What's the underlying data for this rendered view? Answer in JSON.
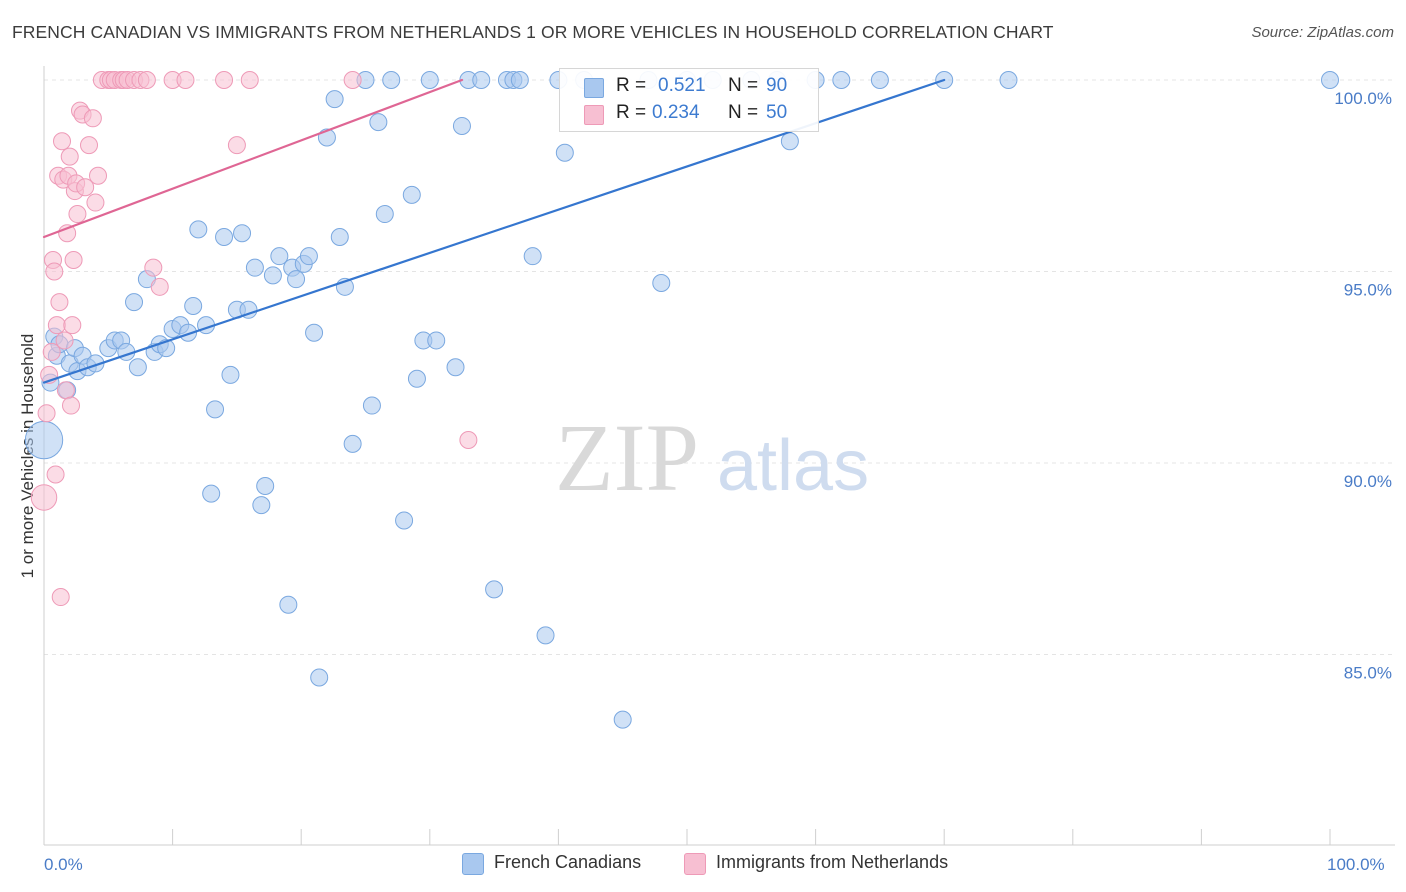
{
  "header": {
    "title": "FRENCH CANADIAN VS IMMIGRANTS FROM NETHERLANDS 1 OR MORE VEHICLES IN HOUSEHOLD CORRELATION CHART",
    "source": "Source: ZipAtlas.com"
  },
  "watermark": {
    "zip": "ZIP",
    "atlas": "atlas"
  },
  "chart_data": {
    "type": "scatter",
    "ylabel": "1 or more Vehicles in Household",
    "xlim": [
      0,
      100
    ],
    "ylim": [
      80.3,
      100.9
    ],
    "x_tick_labels": [
      "0.0%",
      "100.0%"
    ],
    "y_ticks": [
      {
        "value": 100,
        "label": "100.0%"
      },
      {
        "value": 95,
        "label": "95.0%"
      },
      {
        "value": 90,
        "label": "90.0%"
      },
      {
        "value": 85,
        "label": "85.0%"
      }
    ],
    "grid": true,
    "legend_placement": "top-center",
    "stats": [
      {
        "r_label": "R =",
        "r": "0.521",
        "n_label": "N =",
        "n": "90"
      },
      {
        "r_label": "R =",
        "r": "0.234",
        "n_label": "N =",
        "n": "50"
      }
    ],
    "series": [
      {
        "name": "French Canadians",
        "color": "#a9c8ef",
        "stroke": "#7aa8e0",
        "line_color": "#3576cf",
        "trend": [
          [
            0,
            92.1
          ],
          [
            70,
            100.0
          ]
        ],
        "points": [
          [
            0.0,
            90.6,
            2.2
          ],
          [
            0.5,
            92.1,
            1
          ],
          [
            0.8,
            93.3,
            1
          ],
          [
            1.0,
            92.8,
            1
          ],
          [
            1.2,
            93.1,
            1
          ],
          [
            1.8,
            91.9,
            1
          ],
          [
            2.0,
            92.6,
            1
          ],
          [
            2.4,
            93.0,
            1
          ],
          [
            2.6,
            92.4,
            1
          ],
          [
            3.0,
            92.8,
            1
          ],
          [
            3.4,
            92.5,
            1
          ],
          [
            4.0,
            92.6,
            1
          ],
          [
            5.0,
            93.0,
            1
          ],
          [
            5.5,
            93.2,
            1
          ],
          [
            6.0,
            93.2,
            1
          ],
          [
            6.4,
            92.9,
            1
          ],
          [
            7.0,
            94.2,
            1
          ],
          [
            7.3,
            92.5,
            1
          ],
          [
            8.0,
            94.8,
            1
          ],
          [
            8.6,
            92.9,
            1
          ],
          [
            9.0,
            93.1,
            1
          ],
          [
            9.5,
            93.0,
            1
          ],
          [
            10.0,
            93.5,
            1
          ],
          [
            10.6,
            93.6,
            1
          ],
          [
            11.2,
            93.4,
            1
          ],
          [
            11.6,
            94.1,
            1
          ],
          [
            12.0,
            96.1,
            1
          ],
          [
            12.6,
            93.6,
            1
          ],
          [
            13.0,
            89.2,
            1
          ],
          [
            13.3,
            91.4,
            1
          ],
          [
            14.0,
            95.9,
            1
          ],
          [
            14.5,
            92.3,
            1
          ],
          [
            15.0,
            94.0,
            1
          ],
          [
            15.4,
            96.0,
            1
          ],
          [
            15.9,
            94.0,
            1
          ],
          [
            16.4,
            95.1,
            1
          ],
          [
            16.9,
            88.9,
            1
          ],
          [
            17.2,
            89.4,
            1
          ],
          [
            17.8,
            94.9,
            1
          ],
          [
            18.3,
            95.4,
            1
          ],
          [
            19.0,
            86.3,
            1
          ],
          [
            19.3,
            95.1,
            1
          ],
          [
            19.6,
            94.8,
            1
          ],
          [
            20.2,
            95.2,
            1
          ],
          [
            20.6,
            95.4,
            1
          ],
          [
            21.0,
            93.4,
            1
          ],
          [
            21.4,
            84.4,
            1
          ],
          [
            22.0,
            98.5,
            1
          ],
          [
            22.6,
            99.5,
            1
          ],
          [
            23.0,
            95.9,
            1
          ],
          [
            23.4,
            94.6,
            1
          ],
          [
            24.0,
            90.5,
            1
          ],
          [
            25.0,
            100.0,
            1
          ],
          [
            25.5,
            91.5,
            1
          ],
          [
            26.0,
            98.9,
            1
          ],
          [
            26.5,
            96.5,
            1
          ],
          [
            27.0,
            100.0,
            1
          ],
          [
            28.0,
            88.5,
            1
          ],
          [
            28.6,
            97.0,
            1
          ],
          [
            29.0,
            92.2,
            1
          ],
          [
            29.5,
            93.2,
            1
          ],
          [
            30.0,
            100.0,
            1
          ],
          [
            30.5,
            93.2,
            1
          ],
          [
            32.0,
            92.5,
            1
          ],
          [
            32.5,
            98.8,
            1
          ],
          [
            33.0,
            100.0,
            1
          ],
          [
            34.0,
            100.0,
            1
          ],
          [
            35.0,
            86.7,
            1
          ],
          [
            36.0,
            100.0,
            1
          ],
          [
            36.5,
            100.0,
            1
          ],
          [
            37.0,
            100.0,
            1
          ],
          [
            38.0,
            95.4,
            1
          ],
          [
            39.0,
            85.5,
            1
          ],
          [
            40.0,
            100.0,
            1
          ],
          [
            40.5,
            98.1,
            1
          ],
          [
            42.0,
            100.0,
            1
          ],
          [
            45.0,
            83.3,
            1
          ],
          [
            47.0,
            100.0,
            1
          ],
          [
            48.0,
            94.7,
            1
          ],
          [
            50.0,
            100.0,
            1
          ],
          [
            52.0,
            100.0,
            1
          ],
          [
            55.0,
            100.0,
            1
          ],
          [
            57.0,
            100.0,
            1
          ],
          [
            58.0,
            98.4,
            1
          ],
          [
            60.0,
            100.0,
            1
          ],
          [
            62.0,
            100.0,
            1
          ],
          [
            65.0,
            100.0,
            1
          ],
          [
            70.0,
            100.0,
            1
          ],
          [
            75.0,
            100.0,
            1
          ],
          [
            100.0,
            100.0,
            1
          ]
        ]
      },
      {
        "name": "Immigrants from Netherlands",
        "color": "#f7bfd2",
        "stroke": "#ee9ab7",
        "line_color": "#df6694",
        "trend": [
          [
            0,
            95.9
          ],
          [
            32.5,
            100.0
          ]
        ],
        "points": [
          [
            0.0,
            89.1,
            1.5
          ],
          [
            0.2,
            91.3,
            1
          ],
          [
            0.4,
            92.3,
            1
          ],
          [
            0.6,
            92.9,
            1
          ],
          [
            0.7,
            95.3,
            1
          ],
          [
            0.8,
            95.0,
            1
          ],
          [
            0.9,
            89.7,
            1
          ],
          [
            1.0,
            93.6,
            1
          ],
          [
            1.1,
            97.5,
            1
          ],
          [
            1.2,
            94.2,
            1
          ],
          [
            1.3,
            86.5,
            1
          ],
          [
            1.4,
            98.4,
            1
          ],
          [
            1.5,
            97.4,
            1
          ],
          [
            1.6,
            93.2,
            1
          ],
          [
            1.7,
            91.9,
            1
          ],
          [
            1.8,
            96.0,
            1
          ],
          [
            1.9,
            97.5,
            1
          ],
          [
            2.0,
            98.0,
            1
          ],
          [
            2.1,
            91.5,
            1
          ],
          [
            2.2,
            93.6,
            1
          ],
          [
            2.3,
            95.3,
            1
          ],
          [
            2.4,
            97.1,
            1
          ],
          [
            2.5,
            97.3,
            1
          ],
          [
            2.6,
            96.5,
            1
          ],
          [
            2.8,
            99.2,
            1
          ],
          [
            3.0,
            99.1,
            1
          ],
          [
            3.2,
            97.2,
            1
          ],
          [
            3.5,
            98.3,
            1
          ],
          [
            3.8,
            99.0,
            1
          ],
          [
            4.0,
            96.8,
            1
          ],
          [
            4.2,
            97.5,
            1
          ],
          [
            4.5,
            100.0,
            1
          ],
          [
            5.0,
            100.0,
            1
          ],
          [
            5.2,
            100.0,
            1
          ],
          [
            5.5,
            100.0,
            1
          ],
          [
            6.0,
            100.0,
            1
          ],
          [
            6.2,
            100.0,
            1
          ],
          [
            6.5,
            100.0,
            1
          ],
          [
            7.0,
            100.0,
            1
          ],
          [
            7.5,
            100.0,
            1
          ],
          [
            8.0,
            100.0,
            1
          ],
          [
            8.5,
            95.1,
            1
          ],
          [
            9.0,
            94.6,
            1
          ],
          [
            10.0,
            100.0,
            1
          ],
          [
            11.0,
            100.0,
            1
          ],
          [
            14.0,
            100.0,
            1
          ],
          [
            15.0,
            98.3,
            1
          ],
          [
            16.0,
            100.0,
            1
          ],
          [
            24.0,
            100.0,
            1
          ],
          [
            33.0,
            90.6,
            1
          ]
        ]
      }
    ]
  }
}
